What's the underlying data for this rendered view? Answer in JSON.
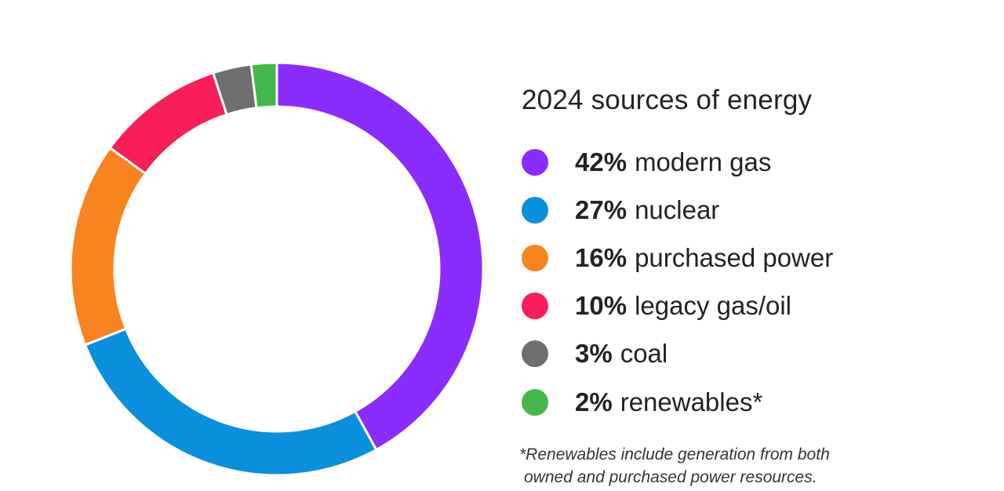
{
  "chart_data": {
    "type": "pie",
    "title": "2024 sources of energy",
    "categories": [
      "modern gas",
      "nuclear",
      "purchased power",
      "legacy gas/oil",
      "coal",
      "renewables*"
    ],
    "values": [
      42,
      27,
      16,
      10,
      3,
      2
    ],
    "percent_labels": [
      "42%",
      "27%",
      "16%",
      "10%",
      "3%",
      "2%"
    ],
    "colors": [
      "#8A2BFF",
      "#0A8FDC",
      "#F7841F",
      "#F71E5A",
      "#6E6E6E",
      "#44B84A"
    ],
    "legend_placement": "right",
    "footnote_lines": [
      "*Renewables include generation from both",
      "owned and purchased power resources."
    ]
  }
}
